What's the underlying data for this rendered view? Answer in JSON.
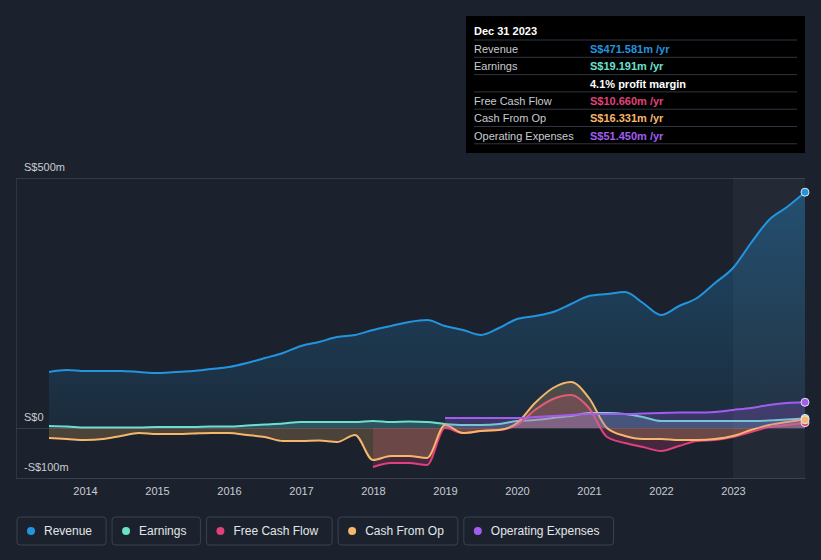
{
  "chart_data": {
    "type": "line",
    "x": [
      2013.5,
      2013.75,
      2014,
      2014.25,
      2014.5,
      2014.75,
      2015,
      2015.25,
      2015.5,
      2015.75,
      2016,
      2016.25,
      2016.5,
      2016.75,
      2017,
      2017.25,
      2017.5,
      2017.75,
      2018,
      2018.25,
      2018.5,
      2018.75,
      2019,
      2019.25,
      2019.5,
      2019.75,
      2020,
      2020.25,
      2020.5,
      2020.75,
      2021,
      2021.25,
      2021.5,
      2021.75,
      2022,
      2022.25,
      2022.5,
      2022.75,
      2023,
      2023.25,
      2023.5,
      2023.75,
      2024
    ],
    "xlim": [
      2013.5,
      2024
    ],
    "xticks": [
      2014,
      2015,
      2016,
      2017,
      2018,
      2019,
      2020,
      2021,
      2022,
      2023
    ],
    "ylim": [
      -100,
      500
    ],
    "yticks": [
      {
        "value": -100,
        "label": "-S$100m"
      },
      {
        "value": 0,
        "label": "S$0"
      },
      {
        "value": 500,
        "label": "S$500m"
      }
    ],
    "grid": true,
    "legend": "bottom",
    "series": [
      {
        "name": "Revenue",
        "color": "#2394df",
        "type": "area",
        "values": [
          112,
          116,
          114,
          114,
          114,
          112,
          110,
          112,
          114,
          118,
          122,
          130,
          140,
          150,
          164,
          172,
          182,
          186,
          196,
          204,
          212,
          216,
          204,
          196,
          186,
          200,
          218,
          224,
          232,
          248,
          264,
          268,
          272,
          250,
          226,
          244,
          260,
          290,
          320,
          370,
          416,
          442,
          471.581
        ]
      },
      {
        "name": "Earnings",
        "color": "#6ce0cc",
        "type": "area",
        "values": [
          4,
          3,
          1,
          1,
          1,
          1,
          2,
          2,
          2,
          3,
          3,
          5,
          7,
          9,
          12,
          12,
          12,
          12,
          14,
          12,
          13,
          12,
          8,
          6,
          6,
          8,
          14,
          16,
          20,
          24,
          30,
          30,
          28,
          22,
          14,
          14,
          14,
          14,
          14,
          14,
          15,
          17,
          19.191
        ]
      },
      {
        "name": "Free Cash Flow",
        "color": "#e0407b",
        "type": "area",
        "values": [
          null,
          null,
          null,
          null,
          null,
          null,
          null,
          null,
          null,
          null,
          null,
          null,
          null,
          null,
          null,
          null,
          null,
          null,
          -78,
          -70,
          -70,
          -74,
          0,
          -10,
          -6,
          -4,
          6,
          36,
          58,
          66,
          40,
          -18,
          -30,
          -38,
          -46,
          -36,
          -26,
          -24,
          -18,
          -8,
          2,
          6,
          10.66
        ]
      },
      {
        "name": "Cash From Op",
        "color": "#f5b76b",
        "type": "area",
        "values": [
          -20,
          -22,
          -24,
          -22,
          -16,
          -10,
          -12,
          -12,
          -11,
          -10,
          -10,
          -14,
          -18,
          -26,
          -26,
          -25,
          -28,
          -14,
          -64,
          -56,
          -56,
          -60,
          6,
          -10,
          -6,
          -4,
          10,
          50,
          80,
          92,
          60,
          0,
          -16,
          -22,
          -22,
          -24,
          -24,
          -22,
          -16,
          -4,
          6,
          12,
          16.331
        ]
      },
      {
        "name": "Operating Expenses",
        "color": "#a25df0",
        "type": "area",
        "values": [
          null,
          null,
          null,
          null,
          null,
          null,
          null,
          null,
          null,
          null,
          null,
          null,
          null,
          null,
          null,
          null,
          null,
          null,
          null,
          null,
          null,
          null,
          20,
          20,
          20,
          20,
          20,
          22,
          24,
          26,
          28,
          28,
          28,
          29,
          30,
          31,
          31,
          32,
          36,
          40,
          46,
          50,
          51.45
        ]
      }
    ],
    "annotation": {
      "title": "Dec 31 2023",
      "rows": [
        {
          "label": "Revenue",
          "value": "S$471.581m /yr",
          "color": "#2394df"
        },
        {
          "label": "Earnings",
          "value": "S$19.191m /yr",
          "color": "#6ce0cc"
        },
        {
          "value": "4.1% profit margin",
          "color": "#ffffff"
        },
        {
          "label": "Free Cash Flow",
          "value": "S$10.660m /yr",
          "color": "#e0407b"
        },
        {
          "label": "Cash From Op",
          "value": "S$16.331m /yr",
          "color": "#f5b76b"
        },
        {
          "label": "Operating Expenses",
          "value": "S$51.450m /yr",
          "color": "#a25df0"
        }
      ]
    }
  }
}
